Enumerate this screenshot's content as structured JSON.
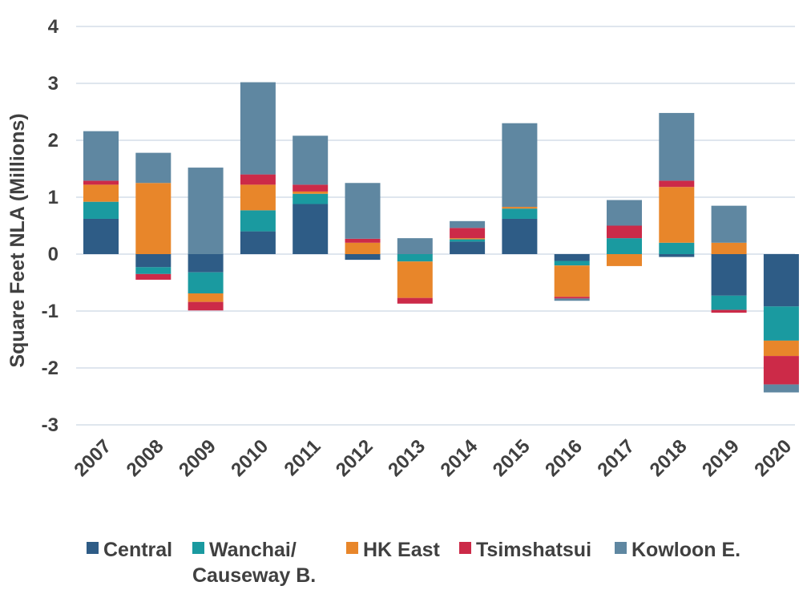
{
  "chart_data": {
    "type": "bar",
    "stacked": true,
    "title": "",
    "xlabel": "",
    "ylabel": "Square Feet NLA (Millions)",
    "ylim": [
      -3,
      4
    ],
    "yticks": [
      "4",
      "3",
      "2",
      "1",
      "0",
      "-1",
      "-2",
      "-3"
    ],
    "ytick_values": [
      4,
      3,
      2,
      1,
      0,
      -1,
      -2,
      -3
    ],
    "grid": true,
    "legend_position": "bottom",
    "categories": [
      "2007",
      "2008",
      "2009",
      "2010",
      "2011",
      "2012",
      "2013",
      "2014",
      "2015",
      "2016",
      "2017",
      "2018",
      "2019",
      "2020"
    ],
    "series": [
      {
        "name": "Central",
        "color": "#2e5c86",
        "values": [
          0.62,
          -0.23,
          -0.32,
          0.4,
          0.88,
          -0.1,
          0.0,
          0.22,
          0.62,
          -0.12,
          0.0,
          -0.05,
          -0.73,
          -0.92
        ]
      },
      {
        "name": "Wanchai/ Causeway B.",
        "color": "#1a9aa0",
        "values": [
          0.3,
          -0.12,
          -0.37,
          0.37,
          0.18,
          0.0,
          -0.13,
          0.04,
          0.18,
          -0.08,
          0.28,
          0.2,
          -0.25,
          -0.6
        ]
      },
      {
        "name": "HK East",
        "color": "#e8862a",
        "values": [
          0.3,
          1.25,
          -0.15,
          0.45,
          0.04,
          0.2,
          -0.64,
          0.02,
          0.03,
          -0.55,
          -0.21,
          0.98,
          0.2,
          -0.27
        ]
      },
      {
        "name": "Tsimshatsui",
        "color": "#cc2a48",
        "values": [
          0.07,
          -0.1,
          -0.15,
          0.18,
          0.12,
          0.07,
          -0.1,
          0.18,
          0.0,
          -0.03,
          0.22,
          0.11,
          -0.05,
          -0.5
        ]
      },
      {
        "name": "Kowloon E.",
        "color": "#5f87a1",
        "values": [
          0.87,
          0.53,
          1.52,
          1.62,
          0.86,
          0.98,
          0.28,
          0.12,
          1.47,
          -0.04,
          0.45,
          1.19,
          0.65,
          -0.14
        ]
      }
    ]
  }
}
